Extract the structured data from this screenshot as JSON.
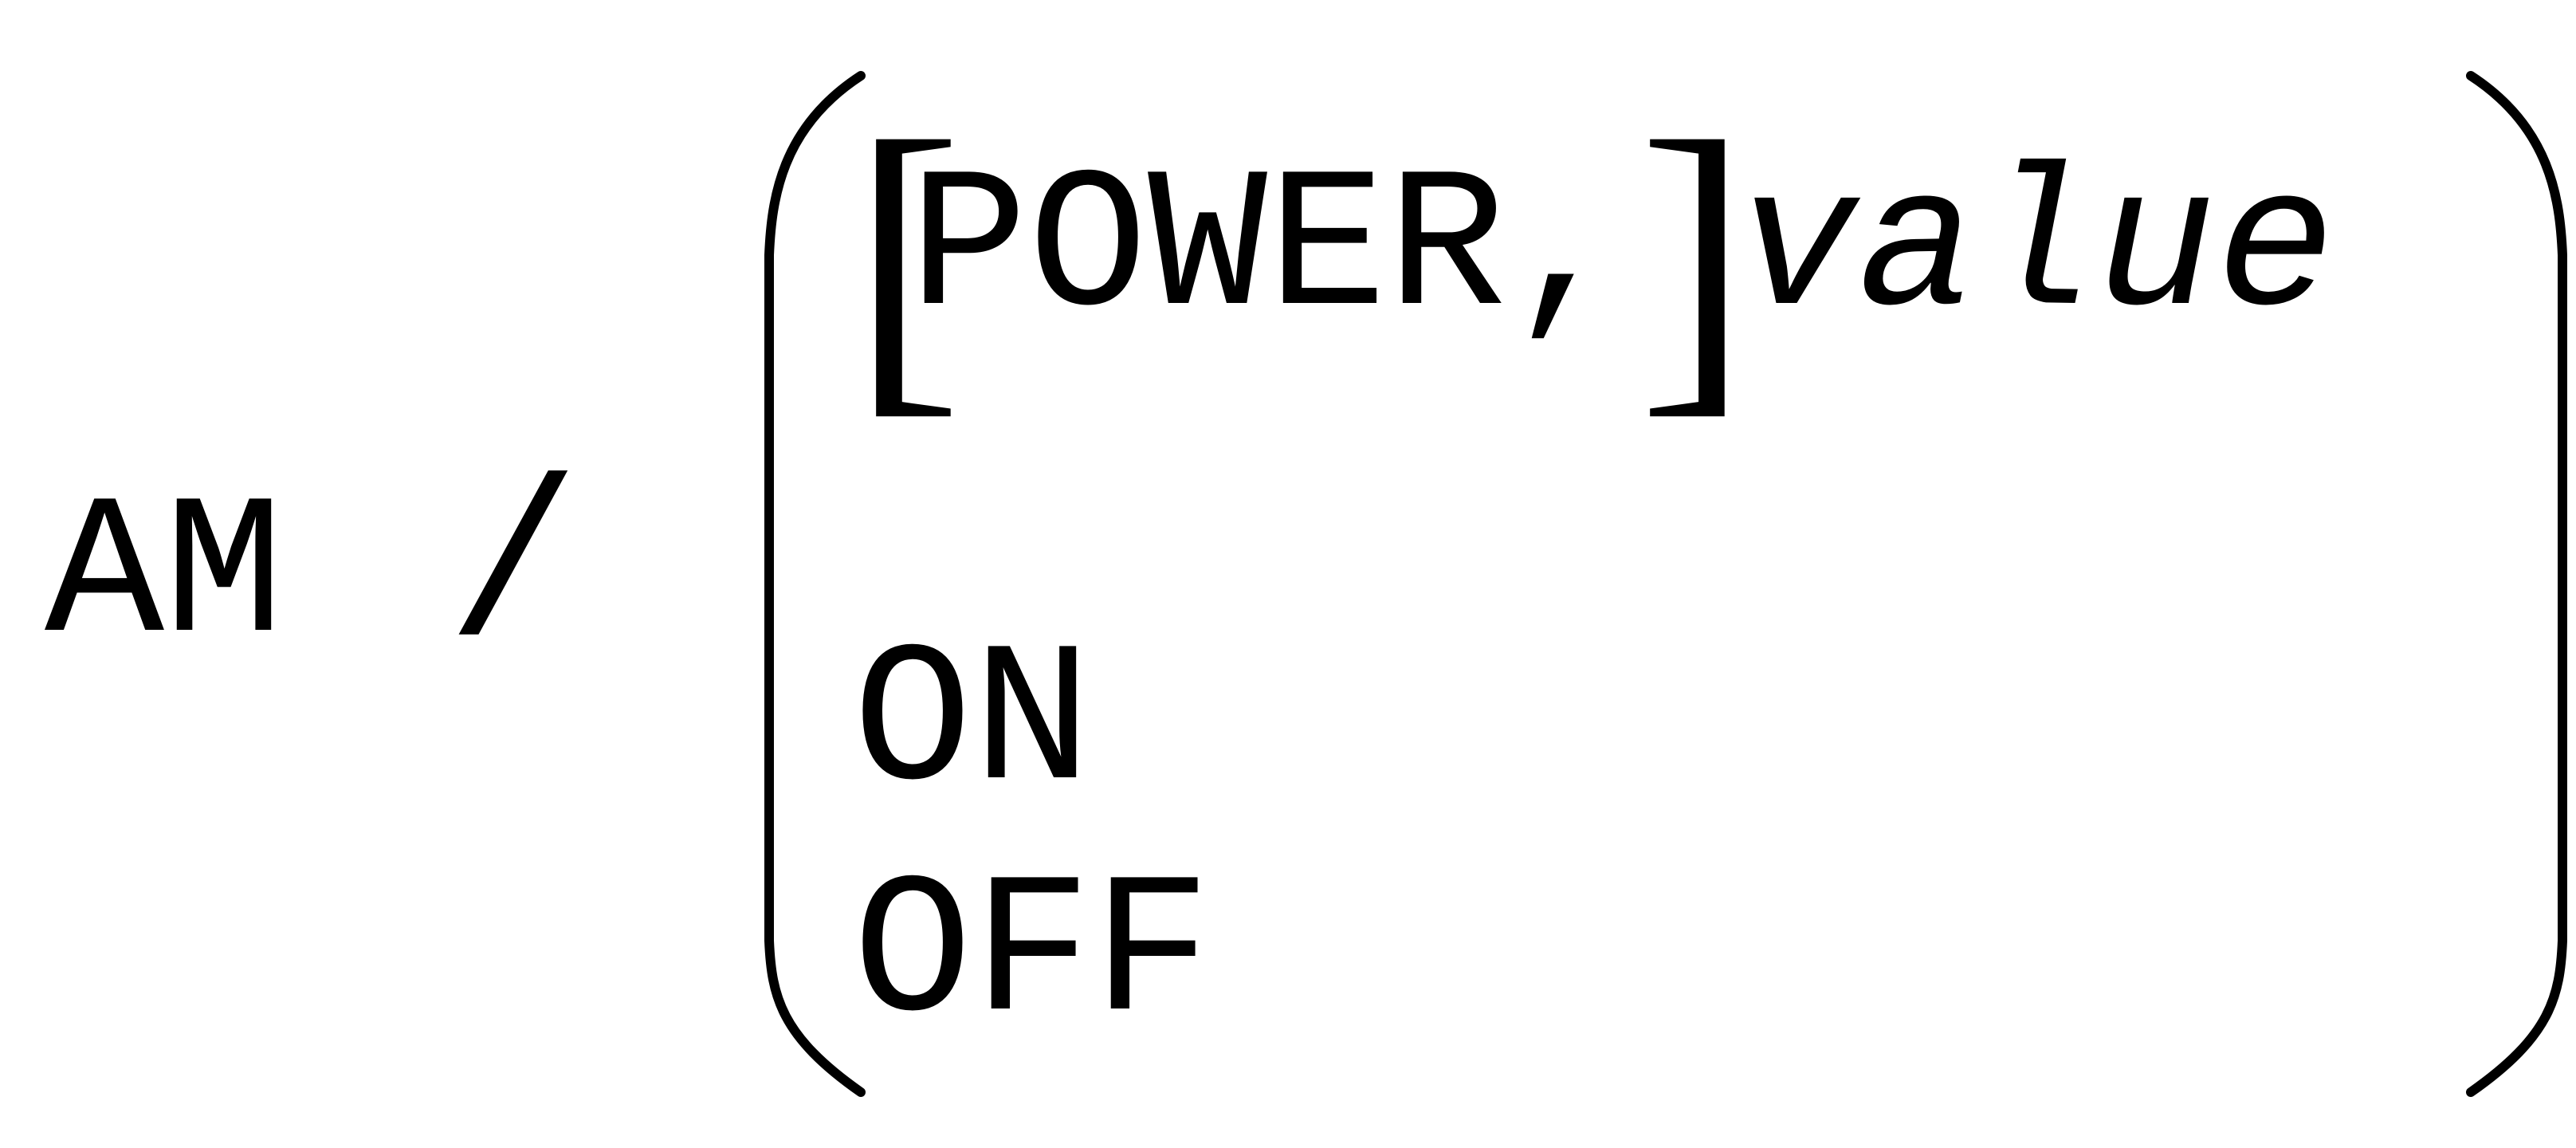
{
  "syntax": {
    "command": "AM",
    "separator": "/",
    "optional_open": "[",
    "optional_keyword": "POWER,",
    "optional_close": "]",
    "parameter": "value",
    "alternatives": [
      "ON",
      "OFF"
    ]
  },
  "icons": {
    "left_group": "left-parenthesis-icon",
    "right_group": "right-parenthesis-icon"
  },
  "colors": {
    "text": "#000000",
    "background": "#ffffff"
  }
}
